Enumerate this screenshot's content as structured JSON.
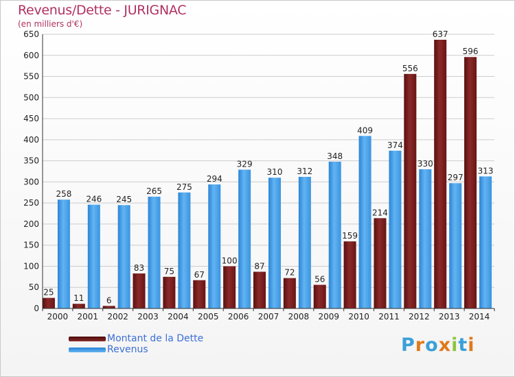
{
  "title": "Revenus/Dette - JURIGNAC",
  "subtitle": "(en milliers d'€)",
  "legend": {
    "debt_label": "Montant de la Dette",
    "revenue_label": "Revenus"
  },
  "logo": {
    "letters": [
      "P",
      "r",
      "o",
      "x",
      "i",
      "t",
      "i"
    ]
  },
  "colors": {
    "debt": "#7a1a1a",
    "debt_light": "#a33a3a",
    "revenue": "#2f8fe0",
    "revenue_light": "#5fb2f2",
    "axis": "#333333",
    "grid": "#cccccc",
    "logo": [
      "#3aa0d8",
      "#e07a1a",
      "#3aa0d8",
      "#e07a1a",
      "#8cc63f",
      "#3aa0d8",
      "#e07a1a"
    ]
  },
  "chart_data": {
    "type": "bar",
    "categories": [
      "2000",
      "2001",
      "2002",
      "2003",
      "2004",
      "2005",
      "2006",
      "2007",
      "2008",
      "2009",
      "2010",
      "2011",
      "2012",
      "2013",
      "2014"
    ],
    "series": [
      {
        "name": "Montant de la Dette",
        "values": [
          25,
          11,
          6,
          83,
          75,
          67,
          100,
          87,
          72,
          56,
          159,
          214,
          556,
          637,
          596
        ]
      },
      {
        "name": "Revenus",
        "values": [
          258,
          246,
          245,
          265,
          275,
          294,
          329,
          310,
          312,
          348,
          409,
          374,
          330,
          297,
          313
        ]
      }
    ],
    "ylim": [
      0,
      650
    ],
    "yticks": [
      0,
      50,
      100,
      150,
      200,
      250,
      300,
      350,
      400,
      450,
      500,
      550,
      600,
      650
    ],
    "grid": true,
    "legend_position": "bottom-left"
  }
}
